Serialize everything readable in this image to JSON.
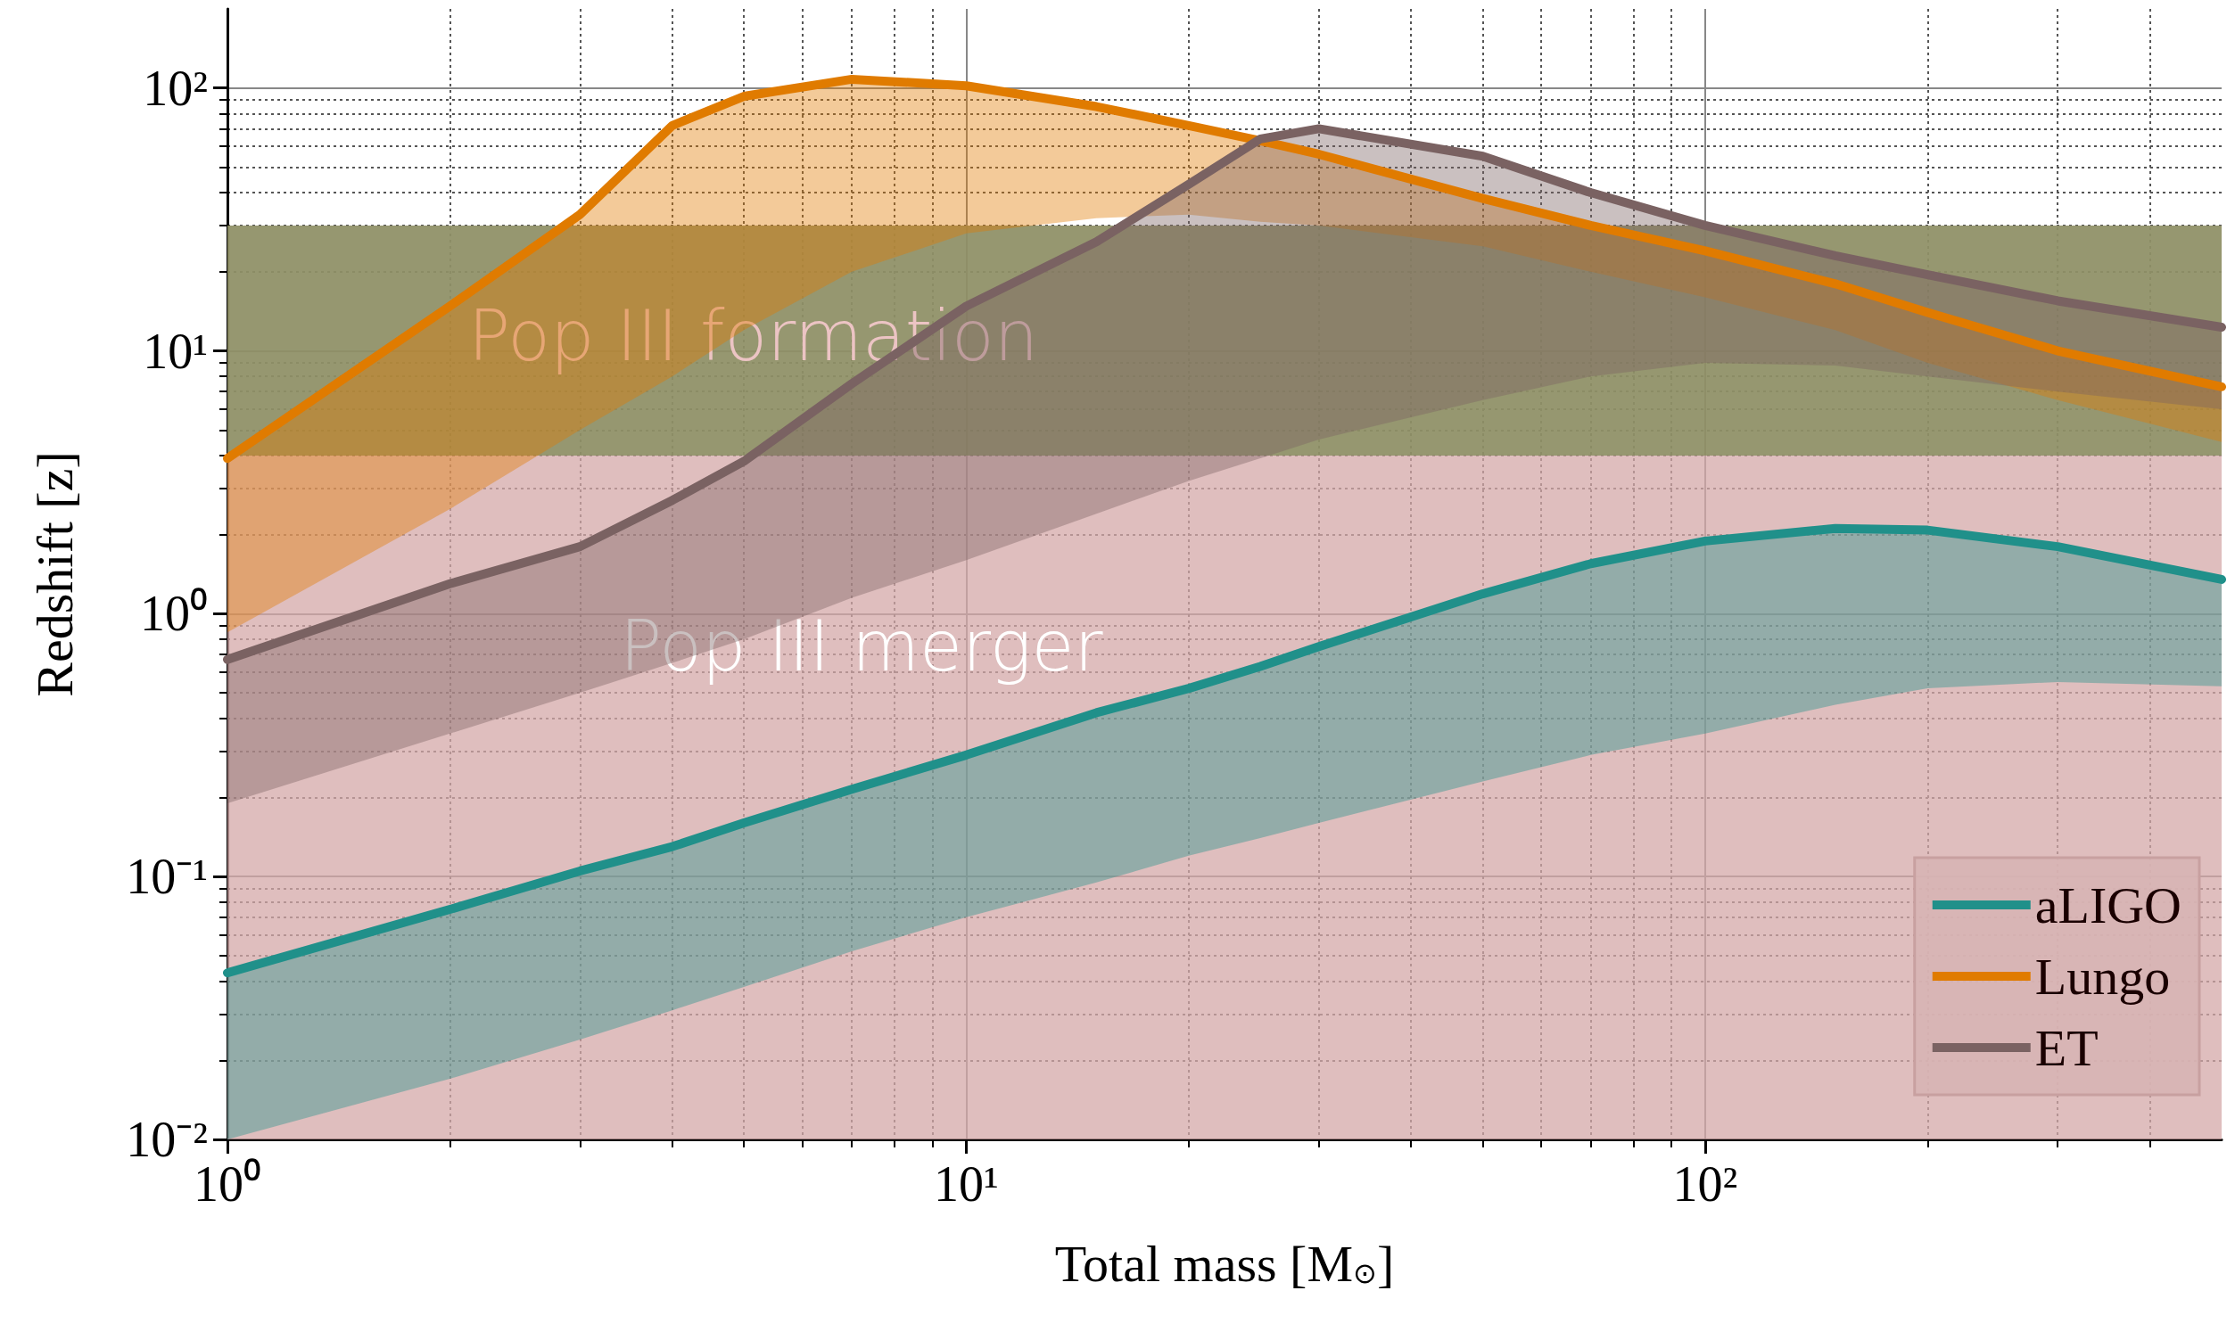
{
  "chart_data": {
    "type": "line",
    "xlabel": "Total mass [M$_{⊙}$]",
    "ylabel": "Redshift [z]",
    "log": "xy",
    "grid": true,
    "legend": "bottom right",
    "marker": "none",
    "line_style": "solid",
    "xlim": [
      1,
      500
    ],
    "xticks": [
      {
        "value": 1,
        "label": "10⁰"
      },
      {
        "value": 10,
        "label": "10¹"
      },
      {
        "value": 100,
        "label": "10²"
      }
    ],
    "ylim": [
      0.01,
      200
    ],
    "yticks": [
      {
        "value": 0.01,
        "label": "10⁻²"
      },
      {
        "value": 0.1,
        "label": "10⁻¹"
      },
      {
        "value": 1,
        "label": "10⁰"
      },
      {
        "value": 10,
        "label": "10¹"
      },
      {
        "value": 100,
        "label": "10²"
      }
    ],
    "x": [
      1,
      2,
      3,
      4,
      5,
      7,
      10,
      15,
      20,
      25,
      30,
      50,
      70,
      100,
      150,
      200,
      300,
      500
    ],
    "series": [
      {
        "name": "aLIGO",
        "color": "#20908a",
        "values": [
          0.043,
          0.075,
          0.105,
          0.13,
          0.16,
          0.215,
          0.29,
          0.42,
          0.52,
          0.63,
          0.75,
          1.19,
          1.55,
          1.89,
          2.11,
          2.08,
          1.8,
          1.35
        ],
        "lower": [
          0.01,
          0.017,
          0.024,
          0.031,
          0.038,
          0.052,
          0.07,
          0.095,
          0.12,
          0.14,
          0.16,
          0.23,
          0.29,
          0.35,
          0.45,
          0.52,
          0.55,
          0.53
        ],
        "upper": [
          0.043,
          0.075,
          0.105,
          0.13,
          0.16,
          0.215,
          0.29,
          0.42,
          0.52,
          0.63,
          0.75,
          1.19,
          1.55,
          1.89,
          2.11,
          2.08,
          1.8,
          1.35
        ]
      },
      {
        "name": "Lungo",
        "color": "#e07b00",
        "values": [
          3.9,
          14.8,
          33,
          72,
          93,
          108,
          102,
          85,
          72,
          63,
          56,
          38,
          30,
          24,
          18,
          14,
          10,
          7.3
        ],
        "lower": [
          0.85,
          2.5,
          5,
          8,
          12,
          20,
          28,
          32,
          33,
          31,
          30,
          25,
          20,
          16,
          12,
          9,
          6.5,
          4.5
        ],
        "upper": [
          3.9,
          14.8,
          33,
          72,
          93,
          108,
          102,
          85,
          72,
          63,
          56,
          38,
          30,
          24,
          18,
          14,
          10,
          7.3
        ]
      },
      {
        "name": "ET",
        "color": "#7a6262",
        "values": [
          0.67,
          1.3,
          1.8,
          2.7,
          3.8,
          7.5,
          14.8,
          26,
          43,
          64,
          70,
          55,
          40,
          30,
          23,
          19.5,
          15.5,
          12.3
        ],
        "lower": [
          0.19,
          0.35,
          0.5,
          0.65,
          0.8,
          1.15,
          1.6,
          2.4,
          3.2,
          3.9,
          4.6,
          6.5,
          8,
          9,
          8.8,
          8,
          7,
          6
        ],
        "upper": [
          0.67,
          1.3,
          1.8,
          2.7,
          3.8,
          7.5,
          14.8,
          26,
          43,
          64,
          70,
          55,
          40,
          30,
          23,
          19.5,
          15.5,
          12.3
        ]
      }
    ],
    "bands": [
      {
        "axis": "y",
        "from": 0.01,
        "to": 30,
        "label": "Pop III merger",
        "color": "#d4a8a8"
      },
      {
        "axis": "y",
        "from": 4,
        "to": 30,
        "label": "Pop III formation",
        "color": "#7d8a55"
      }
    ]
  }
}
